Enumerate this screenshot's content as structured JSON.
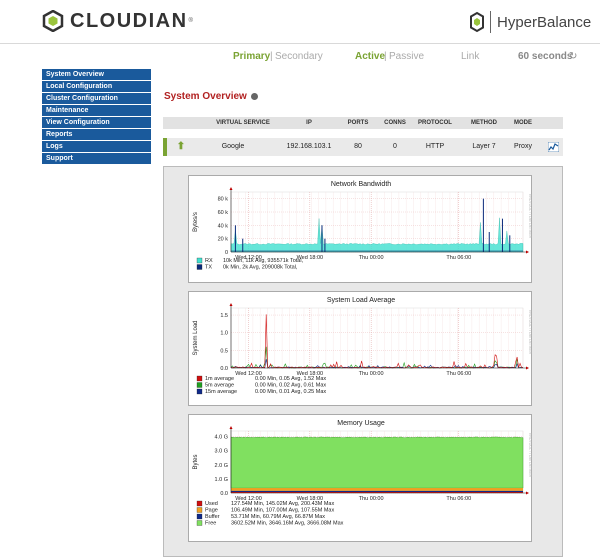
{
  "brand": {
    "name": "CLOUDIAN",
    "trademark": "®",
    "product": "HyperBalance"
  },
  "status": {
    "primary": "Primary",
    "secondary": "Secondary",
    "active": "Active",
    "passive": "Passive",
    "link": "Link",
    "refresh": "60 seconds"
  },
  "nav": [
    "System Overview",
    "Local Configuration",
    "Cluster Configuration",
    "Maintenance",
    "View Configuration",
    "Reports",
    "Logs",
    "Support"
  ],
  "page": {
    "title": "System Overview"
  },
  "vs_table": {
    "headers": [
      "VIRTUAL SERVICE",
      "IP",
      "PORTS",
      "CONNS",
      "PROTOCOL",
      "METHOD",
      "MODE"
    ],
    "row": {
      "name": "Google",
      "ip": "192.168.103.1",
      "ports": "80",
      "conns": "0",
      "protocol": "HTTP",
      "method": "Layer 7",
      "mode": "Proxy"
    }
  },
  "colors": {
    "nav": "#1a5a9c",
    "accent_green": "#7aa333",
    "title_red": "#b22222"
  },
  "chart_data": [
    {
      "type": "area",
      "title": "Network Bandwidth",
      "ylabel": "Bytes/s",
      "yticks": [
        "0",
        "20 k",
        "40 k",
        "60 k",
        "80 k"
      ],
      "ylim": [
        0,
        90000
      ],
      "xticks": [
        "Wed 12:00",
        "Wed 18:00",
        "Thu 00:00",
        "Thu 06:00"
      ],
      "side_label": "RRDTOOL / TOBI OETIKER",
      "series": [
        {
          "name": "RX",
          "color": "#40e0d0",
          "stats": "10k Min,    11k Avg,    935571k Total,"
        },
        {
          "name": "TX",
          "color": "#0a2a7a",
          "stats": "0k Min,     2k Avg,    209008k Total,"
        }
      ]
    },
    {
      "type": "line",
      "title": "System Load Average",
      "ylabel": "System Load",
      "yticks": [
        "0.0",
        "0.5",
        "1.0",
        "1.5"
      ],
      "ylim": [
        0,
        1.7
      ],
      "xticks": [
        "Wed 12:00",
        "Wed 18:00",
        "Thu 00:00",
        "Thu 06:00"
      ],
      "side_label": "RRDTOOL / TOBI OETIKER",
      "series": [
        {
          "name": "1m average",
          "color": "#d01010",
          "stats": "0.00 Min,   0.05 Avg,    1.52 Max"
        },
        {
          "name": "5m average",
          "color": "#20a020",
          "stats": "0.00 Min,   0.02 Avg,    0.61 Max"
        },
        {
          "name": "15m average",
          "color": "#102a8a",
          "stats": "0.00 Min,   0.01 Avg,    0.25 Max"
        }
      ]
    },
    {
      "type": "area",
      "title": "Memory Usage",
      "ylabel": "Bytes",
      "yticks": [
        "0.0",
        "1.0 G",
        "2.0 G",
        "3.0 G",
        "4.0 G"
      ],
      "ylim": [
        0,
        4.4
      ],
      "xticks": [
        "Wed 12:00",
        "Wed 18:00",
        "Thu 00:00",
        "Thu 06:00"
      ],
      "side_label": "RRDTOOL / TOBI OETIKER",
      "series": [
        {
          "name": "Used",
          "color": "#d01010",
          "stats": "127.54M Min,    145.02M Avg,    200.43M Max"
        },
        {
          "name": "Page",
          "color": "#f0a020",
          "stats": "106.49M Min,    107.00M Avg,    107.55M Max"
        },
        {
          "name": "Buffer",
          "color": "#102a8a",
          "stats": "53.71M Min,     60.79M Avg,     66.87M Max"
        },
        {
          "name": "Free",
          "color": "#80e060",
          "stats": "3602.52M Min,   3646.16M Avg,   3666.08M Max"
        }
      ]
    }
  ]
}
